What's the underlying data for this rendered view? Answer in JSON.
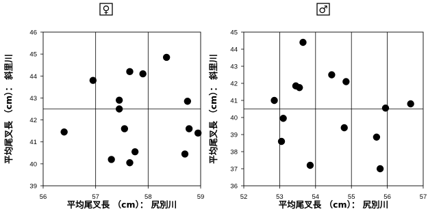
{
  "chart_data": [
    {
      "type": "scatter",
      "title": "♀",
      "xlabel": "平均尾叉長 （cm）：  尻別川",
      "ylabel": "平均尾叉長 （cm）：  斜里川",
      "xlim": [
        56,
        59
      ],
      "ylim": [
        39,
        46
      ],
      "x_ticks": [
        "56",
        "57",
        "58",
        "59"
      ],
      "y_ticks": [
        "39",
        "40",
        "41",
        "42",
        "43",
        "44",
        "45",
        "46"
      ],
      "grid": "major",
      "points": [
        {
          "x": 56.4,
          "y": 41.45
        },
        {
          "x": 56.95,
          "y": 43.8
        },
        {
          "x": 57.3,
          "y": 40.2
        },
        {
          "x": 57.45,
          "y": 42.9
        },
        {
          "x": 57.45,
          "y": 42.5
        },
        {
          "x": 57.55,
          "y": 41.6
        },
        {
          "x": 57.65,
          "y": 44.2
        },
        {
          "x": 57.65,
          "y": 40.05
        },
        {
          "x": 57.75,
          "y": 40.55
        },
        {
          "x": 57.9,
          "y": 44.1
        },
        {
          "x": 58.35,
          "y": 44.85
        },
        {
          "x": 58.7,
          "y": 40.45
        },
        {
          "x": 58.75,
          "y": 42.85
        },
        {
          "x": 58.78,
          "y": 41.6
        },
        {
          "x": 58.95,
          "y": 41.4
        }
      ]
    },
    {
      "type": "scatter",
      "title": "♂",
      "xlabel": "平均尾叉長 （cm）：  尻別川",
      "ylabel": "平均尾叉長 （cm）：  斜里川",
      "xlim": [
        52,
        57
      ],
      "ylim": [
        36,
        45
      ],
      "x_ticks": [
        "52",
        "53",
        "54",
        "55",
        "56",
        "57"
      ],
      "y_ticks": [
        "36",
        "37",
        "38",
        "39",
        "40",
        "41",
        "42",
        "43",
        "44",
        "45"
      ],
      "grid": "major",
      "points": [
        {
          "x": 52.85,
          "y": 41.0
        },
        {
          "x": 53.05,
          "y": 38.6
        },
        {
          "x": 53.1,
          "y": 39.95
        },
        {
          "x": 53.45,
          "y": 41.85
        },
        {
          "x": 53.55,
          "y": 41.75
        },
        {
          "x": 53.65,
          "y": 44.4
        },
        {
          "x": 53.85,
          "y": 37.2
        },
        {
          "x": 54.45,
          "y": 42.5
        },
        {
          "x": 54.8,
          "y": 39.4
        },
        {
          "x": 54.85,
          "y": 42.1
        },
        {
          "x": 55.7,
          "y": 38.85
        },
        {
          "x": 55.8,
          "y": 37.0
        },
        {
          "x": 55.95,
          "y": 40.55
        },
        {
          "x": 56.65,
          "y": 40.8
        }
      ]
    }
  ]
}
